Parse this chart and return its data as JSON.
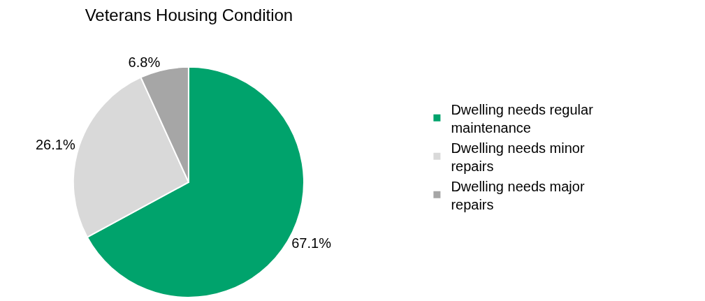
{
  "chart_data": {
    "type": "pie",
    "title": "Veterans Housing Condition",
    "categories": [
      "Dwelling needs regular maintenance",
      "Dwelling needs minor repairs",
      "Dwelling needs major repairs"
    ],
    "values": [
      67.1,
      26.1,
      6.8
    ],
    "value_labels": [
      "67.1%",
      "26.1%",
      "6.8%"
    ],
    "colors": [
      "#00a36c",
      "#d9d9d9",
      "#a6a6a6"
    ],
    "legend": "right"
  }
}
